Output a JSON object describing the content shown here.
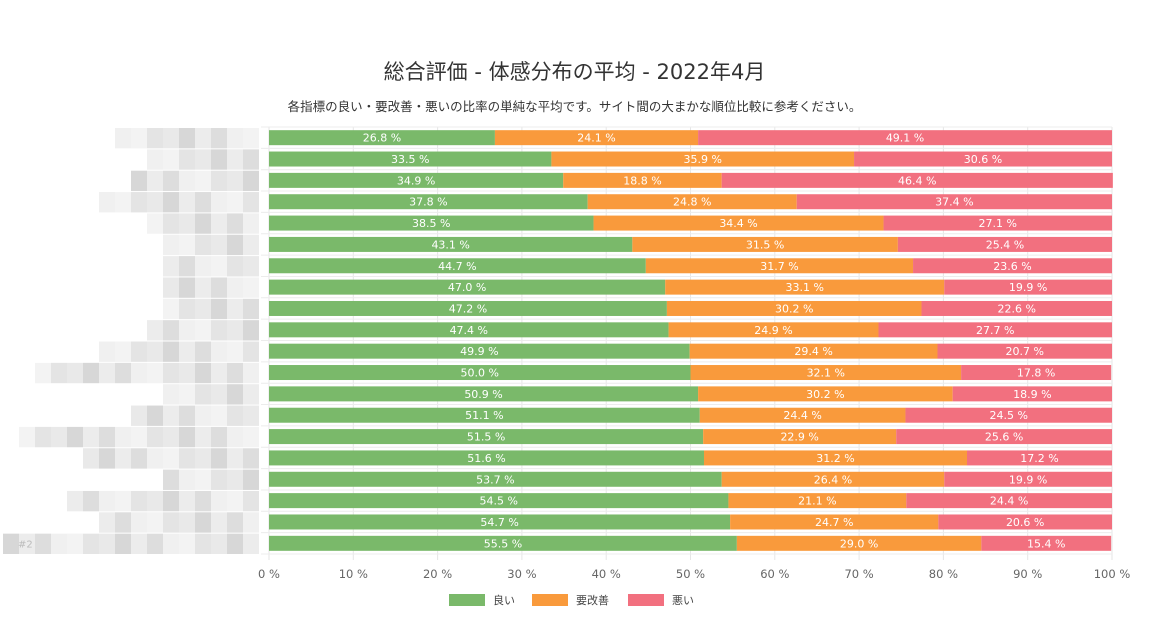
{
  "chart_data": {
    "type": "bar",
    "orientation": "horizontal",
    "stacked": true,
    "title": "総合評価 - 体感分布の平均 - 2022年4月",
    "subtitle": "各指標の良い・要改善・悪いの比率の単純な平均です。サイト間の大まかな順位比較に参考ください。",
    "categories": [
      "",
      "",
      "",
      "",
      "",
      "",
      "",
      "",
      "",
      "",
      "",
      "",
      "",
      "",
      "",
      "",
      "",
      "",
      "",
      "#2"
    ],
    "series": [
      {
        "name": "良い",
        "color": "#7ab96a",
        "values": [
          26.8,
          33.5,
          34.9,
          37.8,
          38.5,
          43.1,
          44.7,
          47.0,
          47.2,
          47.4,
          49.9,
          50.0,
          50.9,
          51.1,
          51.5,
          51.6,
          53.7,
          54.5,
          54.7,
          55.5
        ]
      },
      {
        "name": "要改善",
        "color": "#f99a3c",
        "values": [
          24.1,
          35.9,
          18.8,
          24.8,
          34.4,
          31.5,
          31.7,
          33.1,
          30.2,
          24.9,
          29.4,
          32.1,
          30.2,
          24.4,
          22.9,
          31.2,
          26.4,
          21.1,
          24.7,
          29.0
        ]
      },
      {
        "name": "悪い",
        "color": "#f2707f",
        "values": [
          49.1,
          30.6,
          46.4,
          37.4,
          27.1,
          25.4,
          23.6,
          19.9,
          22.6,
          27.7,
          20.7,
          17.8,
          18.9,
          24.5,
          25.6,
          17.2,
          19.9,
          24.4,
          20.6,
          15.4
        ]
      }
    ],
    "xlim": [
      0,
      100
    ],
    "xticks": [
      "0 %",
      "10 %",
      "20 %",
      "30 %",
      "40 %",
      "50 %",
      "60 %",
      "70 %",
      "80 %",
      "90 %",
      "100 %"
    ],
    "value_format": "{v} %",
    "legend_position": "bottom-center",
    "grid": true
  }
}
